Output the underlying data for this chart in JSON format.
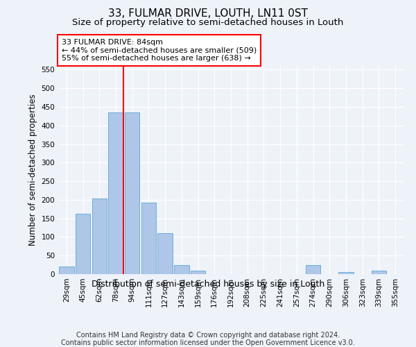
{
  "title": "33, FULMAR DRIVE, LOUTH, LN11 0ST",
  "subtitle": "Size of property relative to semi-detached houses in Louth",
  "xlabel": "Distribution of semi-detached houses by size in Louth",
  "ylabel": "Number of semi-detached properties",
  "categories": [
    "29sqm",
    "45sqm",
    "62sqm",
    "78sqm",
    "94sqm",
    "111sqm",
    "127sqm",
    "143sqm",
    "159sqm",
    "176sqm",
    "192sqm",
    "208sqm",
    "225sqm",
    "241sqm",
    "257sqm",
    "274sqm",
    "290sqm",
    "306sqm",
    "323sqm",
    "339sqm",
    "355sqm"
  ],
  "values": [
    20,
    163,
    203,
    435,
    435,
    193,
    110,
    25,
    10,
    0,
    0,
    0,
    0,
    0,
    0,
    25,
    0,
    5,
    0,
    10,
    0
  ],
  "bar_color": "#aec6e8",
  "bar_edge_color": "#6aaed6",
  "property_bin_index": 3,
  "annotation_title": "33 FULMAR DRIVE: 84sqm",
  "annotation_line1": "← 44% of semi-detached houses are smaller (509)",
  "annotation_line2": "55% of semi-detached houses are larger (638) →",
  "vline_color": "red",
  "annotation_box_color": "white",
  "annotation_box_edgecolor": "red",
  "ylim": [
    0,
    560
  ],
  "yticks": [
    0,
    50,
    100,
    150,
    200,
    250,
    300,
    350,
    400,
    450,
    500,
    550
  ],
  "footer": "Contains HM Land Registry data © Crown copyright and database right 2024.\nContains public sector information licensed under the Open Government Licence v3.0.",
  "background_color": "#eef2f9",
  "title_fontsize": 11,
  "subtitle_fontsize": 9.5,
  "axis_label_fontsize": 8.5,
  "tick_fontsize": 7.5,
  "footer_fontsize": 7
}
